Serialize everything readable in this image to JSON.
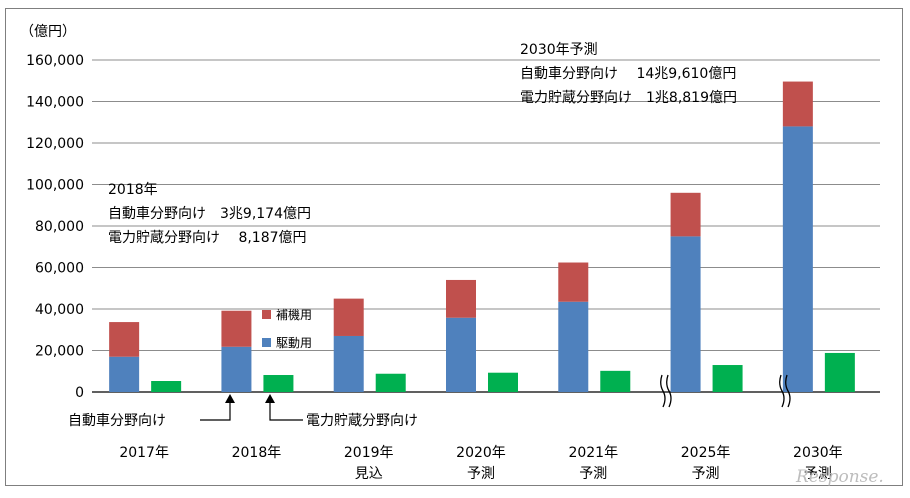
{
  "chart_data": {
    "type": "bar",
    "unit_label": "（億円）",
    "categories": [
      [
        "2017年"
      ],
      [
        "2018年"
      ],
      [
        "2019年",
        "見込"
      ],
      [
        "2020年",
        "予測"
      ],
      [
        "2021年",
        "予測"
      ],
      [
        "2025年",
        "予測"
      ],
      [
        "2030年",
        "予測"
      ]
    ],
    "yticks": [
      "0",
      "20,000",
      "40,000",
      "60,000",
      "80,000",
      "100,000",
      "120,000",
      "140,000",
      "160,000"
    ],
    "ylim": [
      0,
      160000
    ],
    "series": [
      {
        "name": "駆動用",
        "group": "自動車分野向け",
        "color": "#4f81bd",
        "values": [
          17000,
          21800,
          27000,
          35800,
          43500,
          75000,
          128000
        ]
      },
      {
        "name": "補機用",
        "group": "自動車分野向け",
        "color": "#c0504d",
        "values": [
          16700,
          17374,
          18000,
          18200,
          18900,
          21000,
          21610
        ]
      },
      {
        "group": "電力貯蔵分野向け",
        "color": "#00b050",
        "values": [
          5300,
          8187,
          8800,
          9300,
          10200,
          13000,
          18819
        ]
      }
    ],
    "legend": [
      "補機用",
      "駆動用"
    ],
    "annotations": {
      "a2018": [
        "2018年",
        "自動車分野向け　3兆9,174億円",
        "電力貯蔵分野向け　 8,187億円"
      ],
      "a2030": [
        "2030年予測",
        "自動車分野向け　 14兆9,610億円",
        "電力貯蔵分野向け　1兆8,819億円"
      ]
    },
    "callouts": {
      "auto": "自動車分野向け",
      "storage": "電力貯蔵分野向け"
    }
  },
  "watermark": "Response."
}
